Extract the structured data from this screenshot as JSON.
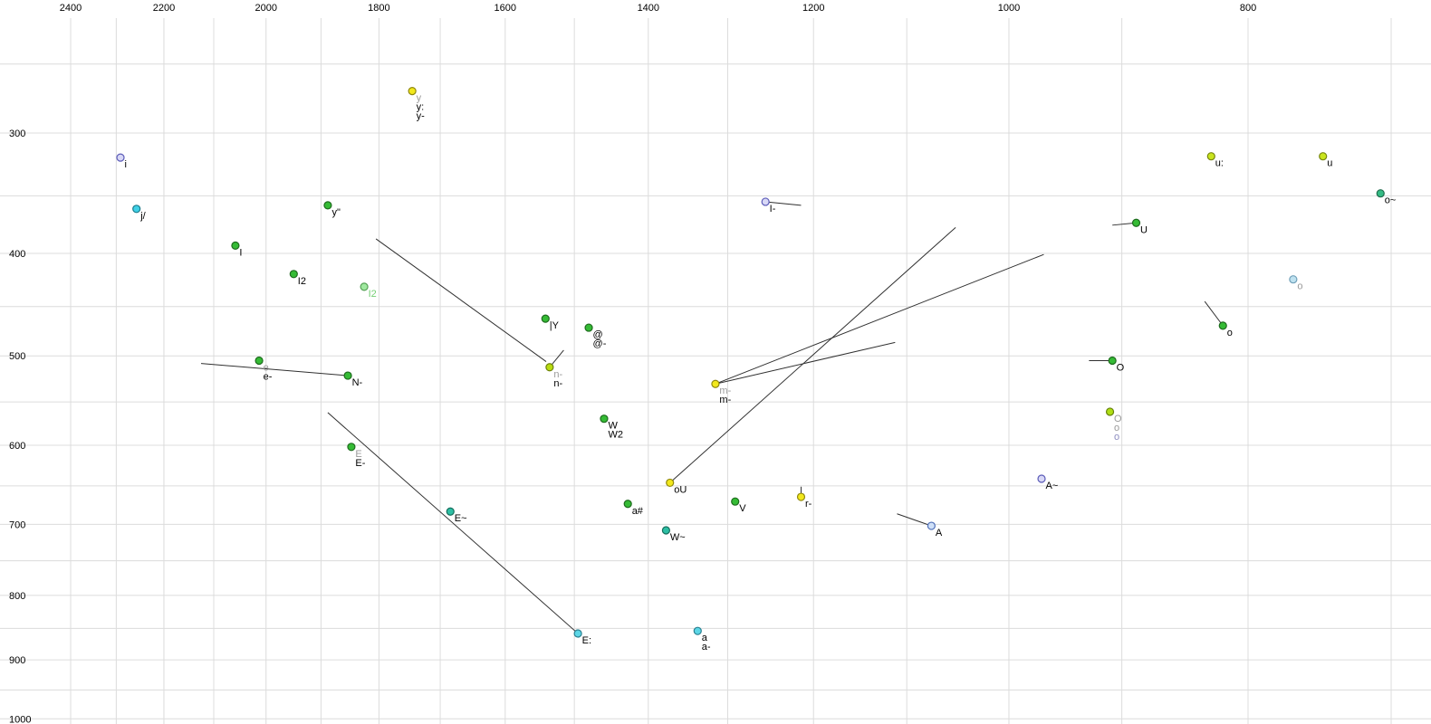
{
  "chart_data": {
    "type": "scatter",
    "title": "",
    "xlabel": "",
    "ylabel": "",
    "x_axis": {
      "ticks_labeled": [
        2400,
        2200,
        2000,
        1800,
        1600,
        1400,
        1200,
        1000,
        800
      ],
      "grid_min": 700,
      "grid_max": 2400,
      "minor_step": 100,
      "scale": "log",
      "direction": "decreasing-rightward",
      "visible_range": [
        2560,
        675
      ],
      "unit": "Hz"
    },
    "y_axis": {
      "ticks_labeled": [
        300,
        400,
        500,
        600,
        700,
        800,
        900,
        1000
      ],
      "grid_min": 250,
      "grid_max": 1000,
      "minor_step": 50,
      "scale": "erb",
      "direction": "increasing-downward",
      "visible_range": [
        208,
        1009
      ],
      "unit": "Hz"
    },
    "grid": true,
    "legend": "none",
    "points": [
      {
        "f2": 2291,
        "f1": 319,
        "fill": "#d8d8f6",
        "stroke": "#5b5bb8",
        "labels": [
          {
            "text": "i",
            "color": "#000000"
          }
        ]
      },
      {
        "f2": 2257,
        "f1": 361,
        "fill": "#3fd0e6",
        "stroke": "#1b7c8c",
        "labels": [
          {
            "text": "j/",
            "color": "#000000"
          }
        ]
      },
      {
        "f2": 2058,
        "f1": 393,
        "fill": "#35bb35",
        "stroke": "#1d6b1d",
        "labels": [
          {
            "text": "I",
            "color": "#000000"
          }
        ]
      },
      {
        "f2": 1949,
        "f1": 419,
        "fill": "#35bb35",
        "stroke": "#1d6b1d",
        "labels": [
          {
            "text": "I2",
            "color": "#000000"
          }
        ]
      },
      {
        "f2": 1825,
        "f1": 431,
        "fill": "#9fe89f",
        "stroke": "#55a055",
        "labels": [
          {
            "text": "I2",
            "color": "#74cf74"
          }
        ]
      },
      {
        "f2": 1888,
        "f1": 358,
        "fill": "#35bb35",
        "stroke": "#1d6b1d",
        "labels": [
          {
            "text": "y\"",
            "color": "#000000"
          }
        ]
      },
      {
        "f2": 1745,
        "f1": 269,
        "fill": "#f2e81c",
        "stroke": "#90880e",
        "labels": [
          {
            "text": "y",
            "color": "#9a9a9a"
          },
          {
            "text": "y:",
            "color": "#000000"
          },
          {
            "text": "y-",
            "color": "#000000"
          }
        ]
      },
      {
        "f2": 1541,
        "f1": 462,
        "fill": "#35bb35",
        "stroke": "#1d6b1d",
        "labels": [
          {
            "text": "|Y",
            "color": "#000000"
          }
        ]
      },
      {
        "f2": 1480,
        "f1": 471,
        "fill": "#35bb35",
        "stroke": "#1d6b1d",
        "labels": [
          {
            "text": "@",
            "color": "#000000"
          },
          {
            "text": "@-",
            "color": "#000000"
          }
        ]
      },
      {
        "f2": 1535,
        "f1": 512,
        "fill": "#b9dc10",
        "stroke": "#6d820a",
        "labels": [
          {
            "text": "n-",
            "color": "#9a9a9a"
          },
          {
            "text": "n-",
            "color": "#000000"
          }
        ]
      },
      {
        "f2": 2013,
        "f1": 505,
        "fill": "#35bb35",
        "stroke": "#1d6b1d",
        "labels": [
          {
            "text": "e",
            "color": "#9a9a9a"
          },
          {
            "text": "e-",
            "color": "#000000"
          }
        ]
      },
      {
        "f2": 1853,
        "f1": 521,
        "fill": "#35bb35",
        "stroke": "#1d6b1d",
        "labels": [
          {
            "text": "N-",
            "color": "#000000"
          }
        ]
      },
      {
        "f2": 1847,
        "f1": 602,
        "fill": "#35bb35",
        "stroke": "#1d6b1d",
        "labels": [
          {
            "text": "E",
            "color": "#9a9a9a"
          },
          {
            "text": "E-",
            "color": "#000000"
          }
        ]
      },
      {
        "f2": 1684,
        "f1": 683,
        "fill": "#2dbfa4",
        "stroke": "#166e5d",
        "labels": [
          {
            "text": "E~",
            "color": "#000000"
          }
        ]
      },
      {
        "f2": 1459,
        "f1": 569,
        "fill": "#35bb35",
        "stroke": "#1d6b1d",
        "labels": [
          {
            "text": "W",
            "color": "#000000"
          },
          {
            "text": "W2",
            "color": "#000000"
          }
        ]
      },
      {
        "f2": 1427,
        "f1": 673,
        "fill": "#35bb35",
        "stroke": "#1d6b1d",
        "labels": [
          {
            "text": "a#",
            "color": "#000000"
          }
        ]
      },
      {
        "f2": 1377,
        "f1": 708,
        "fill": "#2dbfa4",
        "stroke": "#166e5d",
        "labels": [
          {
            "text": "W~",
            "color": "#000000"
          }
        ]
      },
      {
        "f2": 1372,
        "f1": 646,
        "fill": "#f2e81c",
        "stroke": "#90880e",
        "labels": [
          {
            "text": "oU",
            "color": "#000000"
          }
        ]
      },
      {
        "f2": 1315,
        "f1": 530,
        "fill": "#f2e81c",
        "stroke": "#90880e",
        "labels": [
          {
            "text": "m-",
            "color": "#9a9a9a"
          },
          {
            "text": "m-",
            "color": "#000000"
          }
        ]
      },
      {
        "f2": 1291,
        "f1": 670,
        "fill": "#35bb35",
        "stroke": "#1d6b1d",
        "labels": [
          {
            "text": "V",
            "color": "#000000"
          }
        ]
      },
      {
        "f2": 1214,
        "f1": 664,
        "fill": "#f2e81c",
        "stroke": "#90880e",
        "labels": [
          {
            "text": "r-",
            "color": "#000000"
          }
        ]
      },
      {
        "f2": 1495,
        "f1": 858,
        "fill": "#5cd6e6",
        "stroke": "#2a8091",
        "labels": [
          {
            "text": "E:",
            "color": "#000000"
          }
        ]
      },
      {
        "f2": 1337,
        "f1": 854,
        "fill": "#5cd6e6",
        "stroke": "#2a8091",
        "labels": [
          {
            "text": "a",
            "color": "#000000"
          },
          {
            "text": "a-",
            "color": "#000000"
          }
        ]
      },
      {
        "f2": 1255,
        "f1": 355,
        "fill": "#d8d8f6",
        "stroke": "#5b5bb8",
        "labels": [
          {
            "text": "I-",
            "color": "#000000"
          }
        ]
      },
      {
        "f2": 970,
        "f1": 641,
        "fill": "#d8d8f6",
        "stroke": "#5b5bb8",
        "labels": [
          {
            "text": "A~",
            "color": "#000000"
          }
        ]
      },
      {
        "f2": 1075,
        "f1": 702,
        "fill": "#cfe0f8",
        "stroke": "#4f6fb8",
        "labels": [
          {
            "text": "A",
            "color": "#000000"
          }
        ]
      },
      {
        "f2": 828,
        "f1": 318,
        "fill": "#c9e41e",
        "stroke": "#77860f",
        "labels": [
          {
            "text": "u:",
            "color": "#000000"
          }
        ]
      },
      {
        "f2": 746,
        "f1": 318,
        "fill": "#c9e41e",
        "stroke": "#77860f",
        "labels": [
          {
            "text": "u",
            "color": "#000000"
          }
        ]
      },
      {
        "f2": 707,
        "f1": 348,
        "fill": "#35bb85",
        "stroke": "#1d6b4c",
        "labels": [
          {
            "text": "o~",
            "color": "#000000"
          }
        ]
      },
      {
        "f2": 888,
        "f1": 373,
        "fill": "#35bb35",
        "stroke": "#1d6b1d",
        "labels": [
          {
            "text": "U",
            "color": "#000000"
          }
        ]
      },
      {
        "f2": 767,
        "f1": 424,
        "fill": "#bfe2f0",
        "stroke": "#6f9fb8",
        "labels": [
          {
            "text": "o",
            "color": "#9a9a9a"
          }
        ]
      },
      {
        "f2": 819,
        "f1": 469,
        "fill": "#35bb35",
        "stroke": "#1d6b1d",
        "labels": [
          {
            "text": "o",
            "color": "#000000"
          }
        ]
      },
      {
        "f2": 908,
        "f1": 505,
        "fill": "#35bb35",
        "stroke": "#1d6b1d",
        "labels": [
          {
            "text": "O",
            "color": "#000000"
          }
        ]
      },
      {
        "f2": 910,
        "f1": 561,
        "fill": "#aede14",
        "stroke": "#66800c",
        "labels": [
          {
            "text": "O",
            "color": "#9a9a9a"
          },
          {
            "text": "o",
            "color": "#9a9a9a"
          },
          {
            "text": "o",
            "color": "#8d8dc0"
          }
        ]
      }
    ],
    "segments": [
      {
        "from": [
          1805,
          387
        ],
        "to": [
          1540,
          506
        ]
      },
      {
        "from": [
          2125,
          508
        ],
        "to": [
          1853,
          521
        ]
      },
      {
        "from": [
          1888,
          562
        ],
        "to": [
          1495,
          858
        ]
      },
      {
        "from": [
          1372,
          646
        ],
        "to": [
          1051,
          377
        ]
      },
      {
        "from": [
          1315,
          530
        ],
        "to": [
          968,
          401
        ]
      },
      {
        "from": [
          1315,
          530
        ],
        "to": [
          1112,
          486
        ]
      },
      {
        "from": [
          908,
          375
        ],
        "to": [
          888,
          373
        ]
      },
      {
        "from": [
          928,
          505
        ],
        "to": [
          908,
          505
        ]
      },
      {
        "from": [
          833,
          445
        ],
        "to": [
          819,
          469
        ]
      },
      {
        "from": [
          1110,
          686
        ],
        "to": [
          1075,
          702
        ]
      },
      {
        "from": [
          1255,
          355
        ],
        "to": [
          1214,
          358
        ]
      },
      {
        "from": [
          1535,
          512
        ],
        "to": [
          1515,
          494
        ]
      },
      {
        "from": [
          1214,
          651
        ],
        "to": [
          1214,
          664
        ]
      }
    ],
    "colors": {
      "grid": "#dcdcdc",
      "segment": "#303030",
      "tick_text": "#000000",
      "secondary_label": "#9a9a9a"
    }
  }
}
